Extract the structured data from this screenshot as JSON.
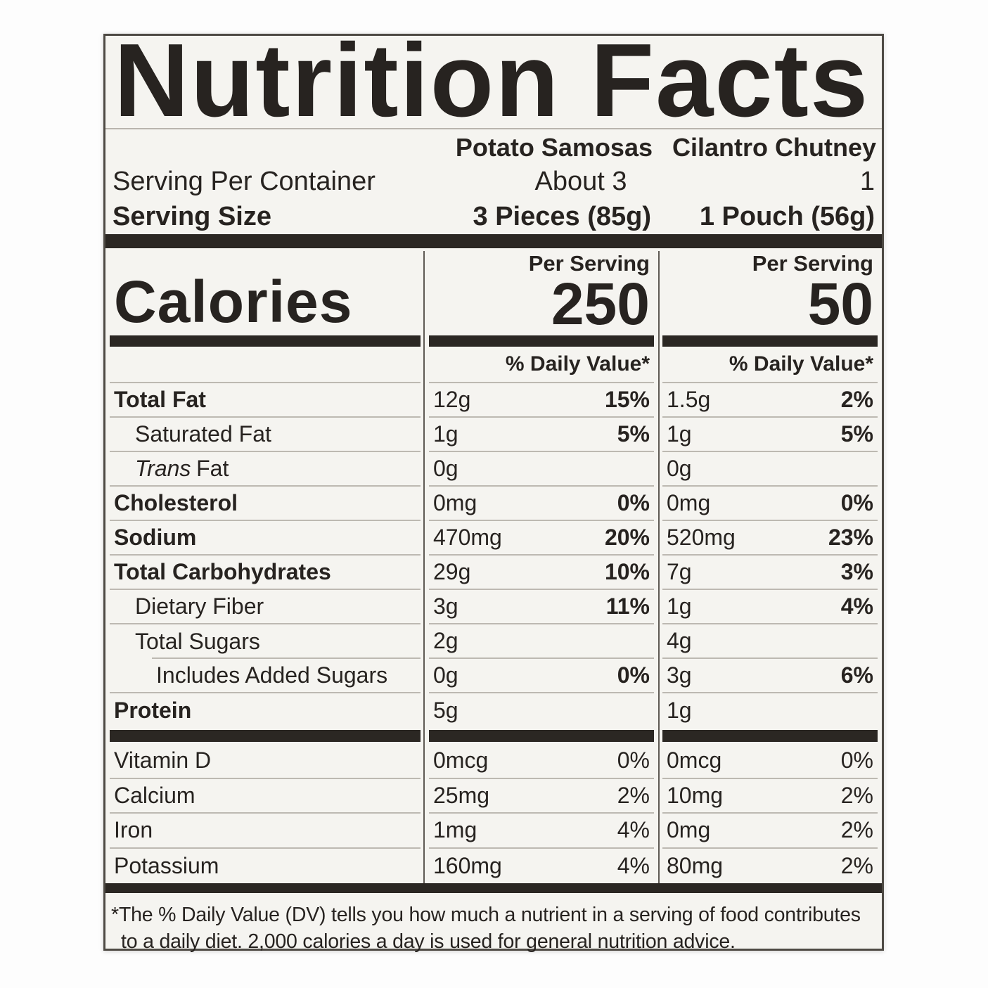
{
  "title": "Nutrition Facts",
  "products": [
    {
      "name": "Potato Samosas",
      "servings_per_container": "About 3",
      "serving_size": "3 Pieces (85g)"
    },
    {
      "name": "Cilantro Chutney",
      "servings_per_container": "1",
      "serving_size": "1 Pouch (56g)"
    }
  ],
  "labels": {
    "serving_per_container": "Serving Per Container",
    "serving_size": "Serving Size",
    "calories": "Calories",
    "per_serving": "Per Serving",
    "daily_value": "% Daily Value*"
  },
  "calories": [
    "250",
    "50"
  ],
  "main": [
    {
      "name": "Total Fat",
      "c1a": "12g",
      "c1d": "15%",
      "c2a": "1.5g",
      "c2d": "2%"
    },
    {
      "name": "Saturated Fat",
      "c1a": "1g",
      "c1d": "5%",
      "c2a": "1g",
      "c2d": "5%"
    },
    {
      "pre": "Trans",
      "name": "Fat",
      "c1a": "0g",
      "c1d": "",
      "c2a": "0g",
      "c2d": ""
    },
    {
      "name": "Cholesterol",
      "c1a": "0mg",
      "c1d": "0%",
      "c2a": "0mg",
      "c2d": "0%"
    },
    {
      "name": "Sodium",
      "c1a": "470mg",
      "c1d": "20%",
      "c2a": "520mg",
      "c2d": "23%"
    },
    {
      "name": "Total Carbohydrates",
      "c1a": "29g",
      "c1d": "10%",
      "c2a": "7g",
      "c2d": "3%"
    },
    {
      "name": "Dietary Fiber",
      "c1a": "3g",
      "c1d": "11%",
      "c2a": "1g",
      "c2d": "4%"
    },
    {
      "name": "Total Sugars",
      "c1a": "2g",
      "c1d": "",
      "c2a": "4g",
      "c2d": ""
    },
    {
      "name": "Includes Added Sugars",
      "c1a": "0g",
      "c1d": "0%",
      "c2a": "3g",
      "c2d": "6%"
    },
    {
      "name": "Protein",
      "c1a": "5g",
      "c1d": "",
      "c2a": "1g",
      "c2d": ""
    }
  ],
  "vitamins": [
    {
      "name": "Vitamin D",
      "c1a": "0mcg",
      "c1d": "0%",
      "c2a": "0mcg",
      "c2d": "0%"
    },
    {
      "name": "Calcium",
      "c1a": "25mg",
      "c1d": "2%",
      "c2a": "10mg",
      "c2d": "2%"
    },
    {
      "name": "Iron",
      "c1a": "1mg",
      "c1d": "4%",
      "c2a": "0mg",
      "c2d": "2%"
    },
    {
      "name": "Potassium",
      "c1a": "160mg",
      "c1d": "4%",
      "c2a": "80mg",
      "c2d": "2%"
    }
  ],
  "footnote": "*The % Daily Value (DV) tells you how much a nutrient in a serving of food contributes to a daily diet. 2,000 calories a day is used for general nutrition advice."
}
